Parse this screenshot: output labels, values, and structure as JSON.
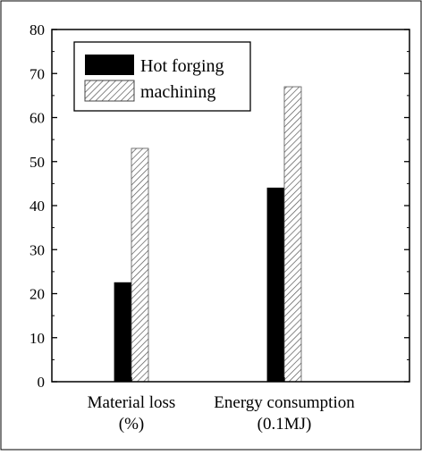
{
  "chart_data": {
    "type": "bar",
    "title": "",
    "xlabel": "",
    "ylabel": "",
    "categories": [
      [
        "Material loss",
        "(%)"
      ],
      [
        "Energy consumption",
        "(0.1MJ)"
      ]
    ],
    "series": [
      {
        "name": "Hot forging",
        "values": [
          22.5,
          44
        ],
        "color": "#000000",
        "pattern": "solid"
      },
      {
        "name": "machining",
        "values": [
          53,
          67
        ],
        "color": "#ffffff",
        "pattern": "hatched"
      }
    ],
    "ylim": [
      0,
      80
    ],
    "yticks": [
      0,
      10,
      20,
      30,
      40,
      50,
      60,
      70,
      80
    ],
    "grid": false,
    "legend_position": "top-left"
  }
}
